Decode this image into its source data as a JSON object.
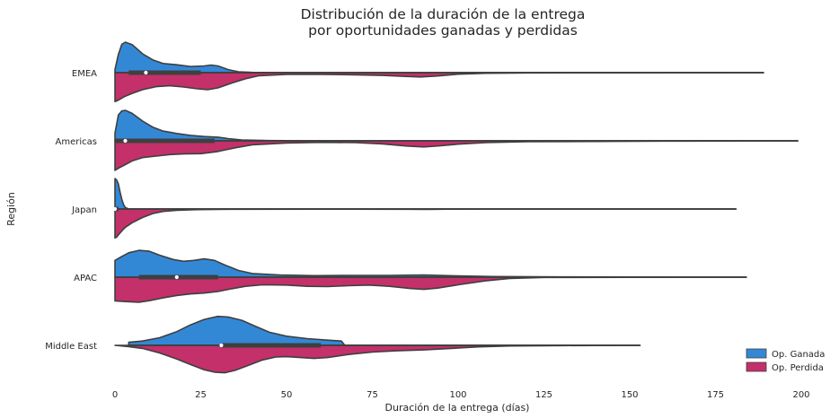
{
  "chart_data": {
    "type": "violin",
    "title": [
      "Distribución de la duración de la entrega",
      "por oportunidades ganadas y perdidas"
    ],
    "xlabel": "Duración de la entrega (días)",
    "ylabel": "Región",
    "xlim": [
      0,
      200
    ],
    "xticks": [
      "0",
      "25",
      "50",
      "75",
      "100",
      "125",
      "150",
      "175",
      "200"
    ],
    "grid": false,
    "legend_position": "bottom-right",
    "split": true,
    "colors": {
      "Op. Ganada": "#3388d6",
      "Op. Perdida": "#c3306a",
      "outline": "#3f3f3f"
    },
    "series": [
      {
        "name": "Op. Ganada",
        "side": "upper",
        "color": "#3388d6"
      },
      {
        "name": "Op. Perdida",
        "side": "lower",
        "color": "#c3306a"
      }
    ],
    "categories": [
      "EMEA",
      "Americas",
      "Japan",
      "APAC",
      "Middle East"
    ],
    "violins": [
      {
        "region": "EMEA",
        "xrange": [
          0,
          189
        ],
        "median": 9,
        "q1": 4,
        "q3": 25,
        "won": [
          [
            0,
            0.1
          ],
          [
            1,
            0.6
          ],
          [
            2,
            0.93
          ],
          [
            3,
            1.0
          ],
          [
            5,
            0.92
          ],
          [
            8,
            0.62
          ],
          [
            11,
            0.42
          ],
          [
            14,
            0.3
          ],
          [
            18,
            0.26
          ],
          [
            22,
            0.2
          ],
          [
            26,
            0.22
          ],
          [
            28,
            0.25
          ],
          [
            30,
            0.22
          ],
          [
            33,
            0.1
          ],
          [
            36,
            0.03
          ],
          [
            40,
            0.01
          ],
          [
            50,
            0.0
          ],
          [
            189,
            0.0
          ]
        ],
        "lost": [
          [
            0,
            0.95
          ],
          [
            1,
            0.9
          ],
          [
            3,
            0.77
          ],
          [
            5,
            0.68
          ],
          [
            8,
            0.56
          ],
          [
            12,
            0.46
          ],
          [
            16,
            0.43
          ],
          [
            20,
            0.47
          ],
          [
            24,
            0.53
          ],
          [
            27,
            0.56
          ],
          [
            30,
            0.5
          ],
          [
            34,
            0.34
          ],
          [
            38,
            0.2
          ],
          [
            42,
            0.1
          ],
          [
            50,
            0.06
          ],
          [
            60,
            0.06
          ],
          [
            70,
            0.07
          ],
          [
            78,
            0.09
          ],
          [
            84,
            0.12
          ],
          [
            89,
            0.14
          ],
          [
            94,
            0.11
          ],
          [
            100,
            0.05
          ],
          [
            108,
            0.02
          ],
          [
            120,
            0.01
          ],
          [
            150,
            0.005
          ],
          [
            189,
            0.0
          ]
        ]
      },
      {
        "region": "Americas",
        "xrange": [
          0,
          199
        ],
        "median": 3,
        "q1": 0,
        "q3": 29,
        "won": [
          [
            0,
            0.25
          ],
          [
            1,
            0.85
          ],
          [
            2,
            0.98
          ],
          [
            3,
            1.0
          ],
          [
            5,
            0.9
          ],
          [
            8,
            0.65
          ],
          [
            11,
            0.45
          ],
          [
            14,
            0.32
          ],
          [
            18,
            0.24
          ],
          [
            22,
            0.18
          ],
          [
            26,
            0.14
          ],
          [
            30,
            0.12
          ],
          [
            33,
            0.07
          ],
          [
            37,
            0.03
          ],
          [
            45,
            0.01
          ],
          [
            60,
            0.0
          ],
          [
            199,
            0.0
          ]
        ],
        "lost": [
          [
            0,
            0.97
          ],
          [
            1,
            0.9
          ],
          [
            3,
            0.78
          ],
          [
            5,
            0.66
          ],
          [
            8,
            0.55
          ],
          [
            12,
            0.5
          ],
          [
            16,
            0.45
          ],
          [
            20,
            0.43
          ],
          [
            25,
            0.42
          ],
          [
            30,
            0.35
          ],
          [
            35,
            0.23
          ],
          [
            40,
            0.13
          ],
          [
            50,
            0.07
          ],
          [
            60,
            0.05
          ],
          [
            70,
            0.06
          ],
          [
            78,
            0.1
          ],
          [
            85,
            0.17
          ],
          [
            90,
            0.2
          ],
          [
            95,
            0.16
          ],
          [
            100,
            0.11
          ],
          [
            108,
            0.06
          ],
          [
            120,
            0.03
          ],
          [
            140,
            0.02
          ],
          [
            160,
            0.01
          ],
          [
            185,
            0.005
          ],
          [
            199,
            0.0
          ]
        ]
      },
      {
        "region": "Japan",
        "xrange": [
          0,
          181
        ],
        "median": 0,
        "q1": 0,
        "q3": 1,
        "won": [
          [
            0,
            1.0
          ],
          [
            0.5,
            0.95
          ],
          [
            1,
            0.82
          ],
          [
            1.5,
            0.55
          ],
          [
            2,
            0.32
          ],
          [
            2.5,
            0.14
          ],
          [
            3,
            0.05
          ],
          [
            4,
            0.0
          ],
          [
            181,
            0.0
          ]
        ],
        "lost": [
          [
            0,
            0.95
          ],
          [
            0.5,
            0.92
          ],
          [
            1,
            0.85
          ],
          [
            2,
            0.72
          ],
          [
            3,
            0.6
          ],
          [
            5,
            0.45
          ],
          [
            8,
            0.28
          ],
          [
            11,
            0.15
          ],
          [
            14,
            0.08
          ],
          [
            18,
            0.04
          ],
          [
            24,
            0.02
          ],
          [
            35,
            0.01
          ],
          [
            60,
            0.005
          ],
          [
            85,
            0.01
          ],
          [
            91,
            0.015
          ],
          [
            97,
            0.005
          ],
          [
            110,
            0.0
          ],
          [
            181,
            0.0
          ]
        ]
      },
      {
        "region": "APAC",
        "xrange": [
          0,
          184
        ],
        "median": 18,
        "q1": 7,
        "q3": 30,
        "won": [
          [
            0,
            0.55
          ],
          [
            2,
            0.68
          ],
          [
            4,
            0.8
          ],
          [
            7,
            0.88
          ],
          [
            10,
            0.85
          ],
          [
            13,
            0.72
          ],
          [
            17,
            0.58
          ],
          [
            20,
            0.52
          ],
          [
            23,
            0.55
          ],
          [
            26,
            0.6
          ],
          [
            29,
            0.55
          ],
          [
            32,
            0.4
          ],
          [
            36,
            0.22
          ],
          [
            40,
            0.12
          ],
          [
            48,
            0.07
          ],
          [
            58,
            0.05
          ],
          [
            70,
            0.06
          ],
          [
            80,
            0.06
          ],
          [
            90,
            0.07
          ],
          [
            100,
            0.04
          ],
          [
            110,
            0.02
          ],
          [
            130,
            0.01
          ],
          [
            150,
            0.005
          ],
          [
            184,
            0.0
          ]
        ],
        "lost": [
          [
            0,
            0.78
          ],
          [
            3,
            0.8
          ],
          [
            7,
            0.82
          ],
          [
            10,
            0.77
          ],
          [
            14,
            0.68
          ],
          [
            18,
            0.6
          ],
          [
            22,
            0.55
          ],
          [
            26,
            0.52
          ],
          [
            30,
            0.47
          ],
          [
            34,
            0.38
          ],
          [
            38,
            0.3
          ],
          [
            43,
            0.25
          ],
          [
            50,
            0.26
          ],
          [
            56,
            0.3
          ],
          [
            62,
            0.31
          ],
          [
            68,
            0.28
          ],
          [
            74,
            0.26
          ],
          [
            80,
            0.3
          ],
          [
            86,
            0.37
          ],
          [
            90,
            0.4
          ],
          [
            94,
            0.36
          ],
          [
            100,
            0.25
          ],
          [
            108,
            0.12
          ],
          [
            115,
            0.04
          ],
          [
            125,
            0.01
          ],
          [
            150,
            0.005
          ],
          [
            184,
            0.0
          ]
        ]
      },
      {
        "region": "Middle East",
        "xrange": [
          4,
          153
        ],
        "median": 31,
        "q1": 31,
        "q3": 60,
        "won": [
          [
            4,
            0.1
          ],
          [
            8,
            0.14
          ],
          [
            13,
            0.25
          ],
          [
            18,
            0.45
          ],
          [
            22,
            0.67
          ],
          [
            26,
            0.85
          ],
          [
            30,
            0.95
          ],
          [
            33,
            0.93
          ],
          [
            37,
            0.82
          ],
          [
            41,
            0.62
          ],
          [
            45,
            0.43
          ],
          [
            50,
            0.3
          ],
          [
            56,
            0.22
          ],
          [
            62,
            0.17
          ],
          [
            66,
            0.14
          ],
          [
            67,
            0.0
          ],
          [
            153,
            0.0
          ]
        ],
        "lost": [
          [
            0,
            0.0
          ],
          [
            4,
            0.04
          ],
          [
            8,
            0.1
          ],
          [
            13,
            0.25
          ],
          [
            18,
            0.45
          ],
          [
            22,
            0.63
          ],
          [
            26,
            0.8
          ],
          [
            29,
            0.88
          ],
          [
            32,
            0.9
          ],
          [
            35,
            0.82
          ],
          [
            39,
            0.65
          ],
          [
            43,
            0.48
          ],
          [
            47,
            0.38
          ],
          [
            50,
            0.37
          ],
          [
            54,
            0.4
          ],
          [
            58,
            0.43
          ],
          [
            62,
            0.4
          ],
          [
            68,
            0.3
          ],
          [
            75,
            0.22
          ],
          [
            82,
            0.18
          ],
          [
            90,
            0.15
          ],
          [
            98,
            0.1
          ],
          [
            106,
            0.05
          ],
          [
            115,
            0.02
          ],
          [
            130,
            0.01
          ],
          [
            153,
            0.0
          ]
        ]
      }
    ]
  }
}
